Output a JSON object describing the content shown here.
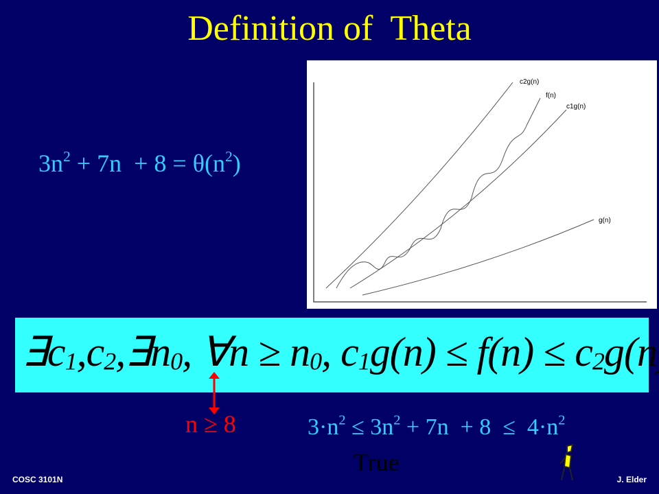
{
  "title": "Definition of  Theta",
  "equation": [
    "3n",
    "2",
    " + 7n  + 8 = θ(n",
    "2",
    ")"
  ],
  "graph": {
    "labels": [
      "c2g(n)",
      "f(n)",
      "c1g(n)",
      "g(n)"
    ]
  },
  "definition": [
    "∃",
    "c",
    "1",
    ",",
    "c",
    "2",
    ",",
    "∃",
    "n",
    "0",
    ", ∀",
    "n",
    " ≥ ",
    "n",
    "0",
    ", ",
    "c",
    "1",
    "g(n) ≤ f(n) ≤ ",
    "c",
    "2",
    "g(n)"
  ],
  "condition": "n ≥ 8",
  "inequality": [
    "3·n",
    "2",
    " ≤ 3n",
    "2",
    " + 7n  + 8  ≤  4·n",
    "2"
  ],
  "verdict": "True",
  "footer": {
    "course": "COSC 3101N",
    "author": "J. Elder"
  }
}
